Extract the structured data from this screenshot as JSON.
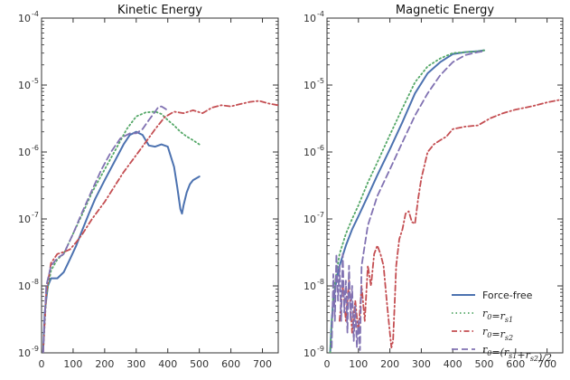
{
  "chart_data": [
    {
      "type": "line",
      "title": "Kinetic Energy",
      "xlabel": "",
      "ylabel": "",
      "xlim": [
        0,
        750
      ],
      "ylim": [
        1e-09,
        0.0001
      ],
      "yscale": "log",
      "xticks": [
        0,
        100,
        200,
        300,
        400,
        500,
        600,
        700
      ],
      "yticks": [
        1e-09,
        1e-08,
        1e-07,
        1e-06,
        1e-05,
        0.0001
      ],
      "ytick_labels": [
        "10",
        "10",
        "10",
        "10",
        "10",
        "10"
      ],
      "ytick_exponents": [
        "-9",
        "-8",
        "-7",
        "-6",
        "-5",
        "-4"
      ],
      "grid": false,
      "series": [
        {
          "name": "Force-free",
          "color": "#4c72b0",
          "dash": "solid",
          "x": [
            5,
            10,
            20,
            30,
            50,
            70,
            90,
            110,
            130,
            150,
            170,
            200,
            230,
            260,
            280,
            300,
            320,
            330,
            340,
            360,
            380,
            400,
            420,
            430,
            440,
            445,
            450,
            460,
            470,
            480,
            500
          ],
          "y": [
            1e-09,
            4e-09,
            1e-08,
            1.3e-08,
            1.3e-08,
            1.6e-08,
            2.5e-08,
            4e-08,
            7e-08,
            1.2e-07,
            2e-07,
            3.8e-07,
            7e-07,
            1.3e-06,
            1.8e-06,
            2e-06,
            1.8e-06,
            1.5e-06,
            1.25e-06,
            1.2e-06,
            1.3e-06,
            1.2e-06,
            6e-07,
            3e-07,
            1.4e-07,
            1.2e-07,
            1.6e-07,
            2.5e-07,
            3.3e-07,
            3.8e-07,
            4.3e-07
          ]
        },
        {
          "name": "r0=rs1",
          "color": "#55a868",
          "dash": "dotted",
          "x": [
            5,
            15,
            30,
            50,
            70,
            100,
            130,
            160,
            200,
            240,
            270,
            300,
            330,
            360,
            380,
            400,
            420,
            440,
            460,
            480,
            500
          ],
          "y": [
            1e-09,
            7e-09,
            1.7e-08,
            2.5e-08,
            3e-08,
            6e-08,
            1.2e-07,
            2.5e-07,
            5.5e-07,
            1.2e-06,
            2.2e-06,
            3.4e-06,
            3.9e-06,
            4e-06,
            3.7e-06,
            3e-06,
            2.5e-06,
            2e-06,
            1.7e-06,
            1.5e-06,
            1.3e-06
          ]
        },
        {
          "name": "r0=rs2",
          "color": "#c44e52",
          "dash": "dashdot",
          "x": [
            5,
            15,
            30,
            50,
            70,
            90,
            110,
            130,
            160,
            200,
            230,
            260,
            300,
            330,
            360,
            390,
            420,
            450,
            480,
            510,
            540,
            570,
            600,
            630,
            660,
            690,
            720,
            750
          ],
          "y": [
            1e-09,
            8e-09,
            2.2e-08,
            3e-08,
            3.2e-08,
            3.5e-08,
            4.5e-08,
            6e-08,
            1e-07,
            1.8e-07,
            3e-07,
            5e-07,
            9e-07,
            1.4e-06,
            2.2e-06,
            3.3e-06,
            4e-06,
            3.8e-06,
            4.2e-06,
            3.8e-06,
            4.6e-06,
            5e-06,
            4.8e-06,
            5.2e-06,
            5.6e-06,
            5.8e-06,
            5.3e-06,
            5e-06
          ]
        },
        {
          "name": "r0=(rs1+rs2)/2",
          "color": "#8172b2",
          "dash": "dashed",
          "x": [
            5,
            15,
            30,
            50,
            70,
            100,
            130,
            160,
            190,
            220,
            250,
            280,
            300,
            320,
            340,
            360,
            370,
            380,
            390,
            400
          ],
          "y": [
            1e-09,
            1e-08,
            2e-08,
            2.6e-08,
            3e-08,
            6e-08,
            1.3e-07,
            2.7e-07,
            5.5e-07,
            1e-06,
            1.6e-06,
            1.9e-06,
            1.9e-06,
            2.2e-06,
            3e-06,
            4e-06,
            4.7e-06,
            4.8e-06,
            4.5e-06,
            4.2e-06
          ]
        }
      ]
    },
    {
      "type": "line",
      "title": "Magnetic Energy",
      "xlabel": "",
      "ylabel": "",
      "xlim": [
        0,
        750
      ],
      "ylim": [
        1e-09,
        0.0001
      ],
      "yscale": "log",
      "xticks": [
        0,
        100,
        200,
        300,
        400,
        500,
        600,
        700
      ],
      "yticks": [
        1e-09,
        1e-08,
        1e-07,
        1e-06,
        1e-05,
        0.0001
      ],
      "grid": false,
      "legend_position": "bottom-right",
      "series": [
        {
          "name": "Force-free",
          "color": "#4c72b0",
          "dash": "solid",
          "x": [
            10,
            15,
            20,
            30,
            40,
            60,
            80,
            100,
            130,
            160,
            200,
            240,
            280,
            320,
            360,
            400,
            440,
            480,
            500
          ],
          "y": [
            1e-09,
            3e-09,
            6e-09,
            1.2e-08,
            2e-08,
            4e-08,
            7e-08,
            1.1e-07,
            2.2e-07,
            4.5e-07,
            1.1e-06,
            2.8e-06,
            7.5e-06,
            1.5e-05,
            2.2e-05,
            2.9e-05,
            3.1e-05,
            3.2e-05,
            3.3e-05
          ]
        },
        {
          "name": "r0=rs1",
          "color": "#55a868",
          "dash": "dotted",
          "x": [
            10,
            20,
            40,
            60,
            80,
            100,
            130,
            160,
            200,
            240,
            280,
            320,
            360,
            400,
            440,
            480,
            500
          ],
          "y": [
            1e-09,
            8e-09,
            3e-08,
            6e-08,
            1e-07,
            1.6e-07,
            3.5e-07,
            7e-07,
            1.8e-06,
            4.5e-06,
            1.1e-05,
            1.9e-05,
            2.5e-05,
            3e-05,
            3.1e-05,
            3.2e-05,
            3.3e-05
          ]
        },
        {
          "name": "r0=rs2",
          "color": "#c44e52",
          "dash": "dashdot",
          "x": [
            40,
            50,
            60,
            70,
            80,
            90,
            100,
            110,
            120,
            130,
            140,
            150,
            160,
            170,
            180,
            190,
            200,
            205,
            210,
            215,
            220,
            230,
            240,
            250,
            260,
            270,
            280,
            290,
            300,
            320,
            340,
            360,
            380,
            400,
            440,
            480,
            520,
            560,
            600,
            650,
            700,
            740
          ],
          "y": [
            3e-09,
            1e-08,
            3e-09,
            1.2e-08,
            2e-09,
            6e-09,
            2e-09,
            1e-08,
            3e-09,
            2e-08,
            1e-08,
            3e-08,
            4e-08,
            3e-08,
            2e-08,
            6e-09,
            2e-09,
            1.2e-09,
            1.5e-09,
            5e-09,
            2e-08,
            5e-08,
            7e-08,
            1.2e-07,
            1.3e-07,
            9e-08,
            8.5e-08,
            2e-07,
            4e-07,
            1e-06,
            1.3e-06,
            1.5e-06,
            1.7e-06,
            2.2e-06,
            2.4e-06,
            2.5e-06,
            3.2e-06,
            3.8e-06,
            4.3e-06,
            4.8e-06,
            5.5e-06,
            6e-06
          ]
        },
        {
          "name": "r0=(rs1+rs2)/2",
          "color": "#8172b2",
          "dash": "dashed",
          "x": [
            15,
            20,
            25,
            30,
            35,
            40,
            45,
            50,
            55,
            60,
            65,
            70,
            75,
            80,
            85,
            90,
            95,
            100,
            105,
            110,
            130,
            160,
            200,
            240,
            280,
            320,
            360,
            400,
            440,
            480,
            500
          ],
          "y": [
            1.2e-09,
            1.5e-08,
            3e-09,
            3e-08,
            6e-09,
            2e-08,
            3e-09,
            3e-08,
            4e-09,
            1.2e-08,
            2e-09,
            2e-08,
            3e-09,
            1e-08,
            1.5e-09,
            5e-09,
            1.2e-09,
            3e-09,
            1.1e-09,
            2e-08,
            8e-08,
            2.2e-07,
            5.5e-07,
            1.4e-06,
            3.5e-06,
            7.5e-06,
            1.4e-05,
            2.2e-05,
            2.8e-05,
            3.1e-05,
            3.2e-05
          ]
        }
      ]
    }
  ],
  "legend": {
    "items": [
      {
        "label": "Force-free",
        "math": false
      },
      {
        "label": "r0=rs1",
        "math": true
      },
      {
        "label": "r0=rs2",
        "math": true
      },
      {
        "label": "r0=(rs1+rs2)/2",
        "math": true
      }
    ]
  }
}
